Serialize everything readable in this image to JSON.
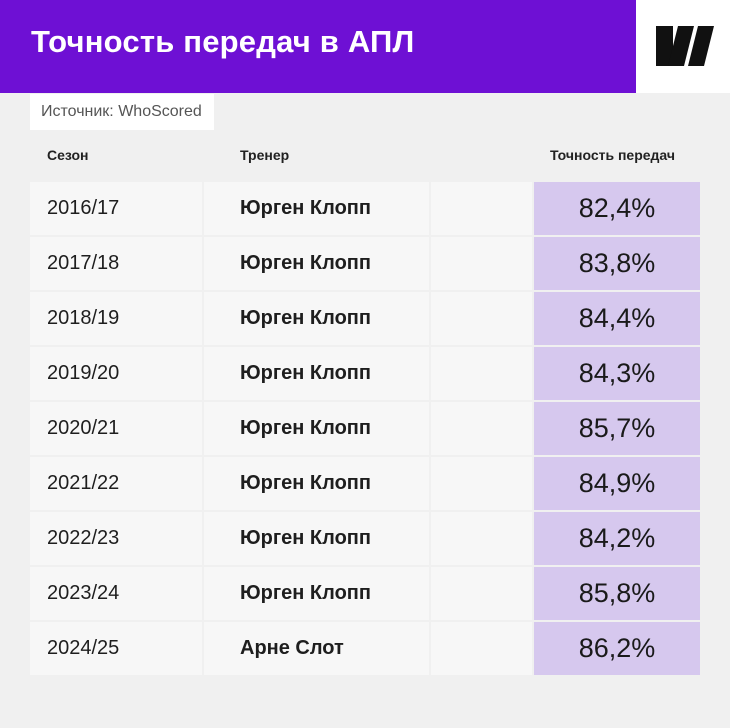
{
  "header": {
    "title": "Точность передач в АПЛ",
    "brand_color": "#6e10d4",
    "logo_icon": "brand-logo-icon"
  },
  "source": "Источник: WhoScored",
  "columns": {
    "season": "Сезон",
    "coach": "Тренер",
    "accuracy": "Точность передач"
  },
  "chart_data": {
    "type": "table",
    "title": "Точность передач в АПЛ",
    "columns": [
      "Сезон",
      "Тренер",
      "Точность передач"
    ],
    "rows": [
      {
        "season": "2016/17",
        "coach": "Юрген Клопп",
        "accuracy": "82,4%",
        "value": 82.4
      },
      {
        "season": "2017/18",
        "coach": "Юрген Клопп",
        "accuracy": "83,8%",
        "value": 83.8
      },
      {
        "season": "2018/19",
        "coach": "Юрген Клопп",
        "accuracy": "84,4%",
        "value": 84.4
      },
      {
        "season": "2019/20",
        "coach": "Юрген Клопп",
        "accuracy": "84,3%",
        "value": 84.3
      },
      {
        "season": "2020/21",
        "coach": "Юрген Клопп",
        "accuracy": "85,7%",
        "value": 85.7
      },
      {
        "season": "2021/22",
        "coach": "Юрген Клопп",
        "accuracy": "84,9%",
        "value": 84.9
      },
      {
        "season": "2022/23",
        "coach": "Юрген Клопп",
        "accuracy": "84,2%",
        "value": 84.2
      },
      {
        "season": "2023/24",
        "coach": "Юрген Клопп",
        "accuracy": "85,8%",
        "value": 85.8
      },
      {
        "season": "2024/25",
        "coach": "Арне Слот",
        "accuracy": "86,2%",
        "value": 86.2
      }
    ],
    "highlight_color": "#d6c8ee"
  }
}
